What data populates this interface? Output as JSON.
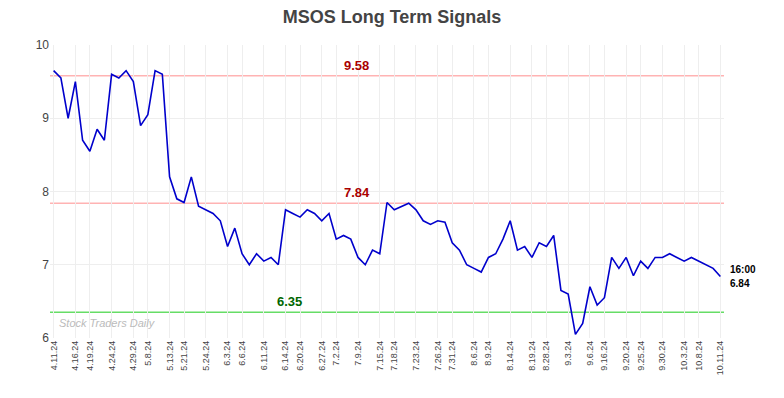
{
  "chart_data": {
    "type": "line",
    "title": "MSOS Long Term Signals",
    "color": "#0000cc",
    "grid": true,
    "ylim": [
      6,
      10
    ],
    "yticks": [
      6,
      7,
      8,
      9,
      10
    ],
    "categories": [
      "4.11.24",
      null,
      null,
      "4.16.24",
      null,
      "4.19.24",
      null,
      null,
      "4.24.24",
      null,
      null,
      "4.29.24",
      null,
      "5.8.24",
      null,
      null,
      "5.13.24",
      null,
      "5.21.24",
      null,
      null,
      "5.24.24",
      null,
      null,
      "6.3.24",
      null,
      "6.6.24",
      null,
      null,
      "6.11.24",
      null,
      null,
      "6.14.24",
      null,
      "6.20.24",
      null,
      null,
      "6.27.24",
      null,
      "7.2.24",
      null,
      null,
      "7.9.24",
      null,
      null,
      "7.15.24",
      null,
      "7.18.24",
      null,
      null,
      "7.23.24",
      null,
      null,
      "7.26.24",
      null,
      "7.31.24",
      null,
      null,
      "8.6.24",
      null,
      "8.9.24",
      null,
      null,
      "8.14.24",
      null,
      null,
      "8.19.24",
      null,
      "8.28.24",
      null,
      null,
      "9.3.24",
      null,
      null,
      "9.6.24",
      null,
      "9.16.24",
      null,
      null,
      "9.20.24",
      null,
      "9.25.24",
      null,
      null,
      "9.30.24",
      null,
      null,
      "10.3.24",
      null,
      "10.8.24",
      null,
      null,
      "10.11.24"
    ],
    "values": [
      9.65,
      9.55,
      9.0,
      9.5,
      8.7,
      8.55,
      8.85,
      8.7,
      9.6,
      9.55,
      9.65,
      9.5,
      8.9,
      9.05,
      9.65,
      9.6,
      8.2,
      7.9,
      7.85,
      8.2,
      7.8,
      7.75,
      7.7,
      7.6,
      7.25,
      7.5,
      7.15,
      7.0,
      7.15,
      7.05,
      7.1,
      7.0,
      7.75,
      7.7,
      7.65,
      7.75,
      7.7,
      7.6,
      7.7,
      7.35,
      7.4,
      7.35,
      7.1,
      7.0,
      7.2,
      7.15,
      7.85,
      7.75,
      7.8,
      7.84,
      7.75,
      7.6,
      7.55,
      7.6,
      7.58,
      7.3,
      7.2,
      7.0,
      6.95,
      6.9,
      7.1,
      7.15,
      7.35,
      7.6,
      7.2,
      7.25,
      7.1,
      7.3,
      7.25,
      7.4,
      6.65,
      6.6,
      6.05,
      6.2,
      6.7,
      6.45,
      6.55,
      7.1,
      6.95,
      7.1,
      6.85,
      7.05,
      6.95,
      7.1,
      7.1,
      7.15,
      7.1,
      7.05,
      7.1,
      7.05,
      7.0,
      6.95,
      6.84
    ],
    "hlines": [
      {
        "value": 9.58,
        "label": "9.58",
        "color": "#ffb3b3",
        "label_color": "#aa0000"
      },
      {
        "value": 7.84,
        "label": "7.84",
        "color": "#ffb3b3",
        "label_color": "#aa0000"
      },
      {
        "value": 6.35,
        "label": "6.35",
        "color": "#66dd66",
        "label_color": "#006600"
      }
    ],
    "end_labels": {
      "texts": [
        "16:00",
        "6.84"
      ],
      "color": "#000000"
    },
    "watermark": {
      "text": "Stock Traders Daily",
      "color": "#bbbbbb"
    }
  }
}
